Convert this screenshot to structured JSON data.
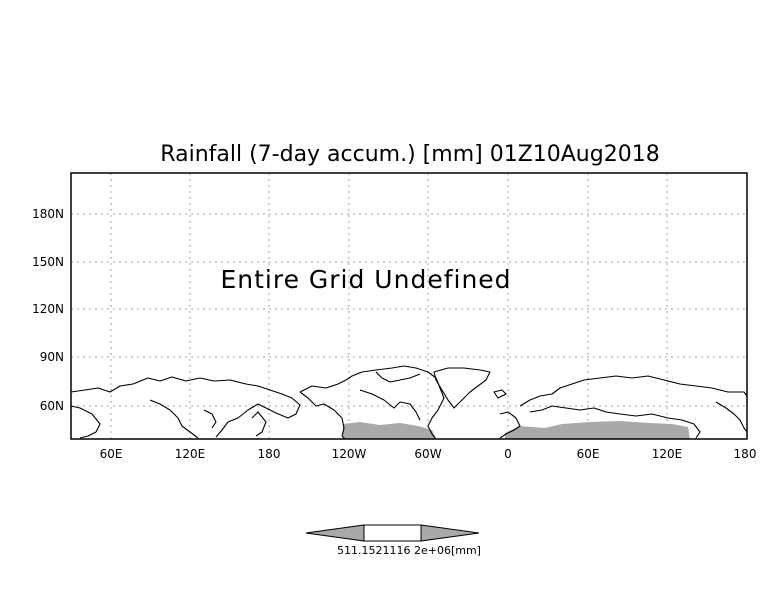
{
  "title": "Rainfall (7-day accum.) [mm] 01Z10Aug2018",
  "message": "Entire Grid Undefined",
  "y_axis_labels": [
    "180N",
    "150N",
    "120N",
    "90N",
    "60N"
  ],
  "x_axis_labels": [
    "60E",
    "120E",
    "180",
    "120W",
    "60W",
    "0",
    "60E",
    "120E",
    "180"
  ],
  "colorbar": {
    "label": "511.1521116 2e+06[mm]",
    "unit_label": "[mm]"
  },
  "colors": {
    "coastline": "#000000",
    "data_fill": "#a9a9a9",
    "grid": "#a0a0a0"
  }
}
